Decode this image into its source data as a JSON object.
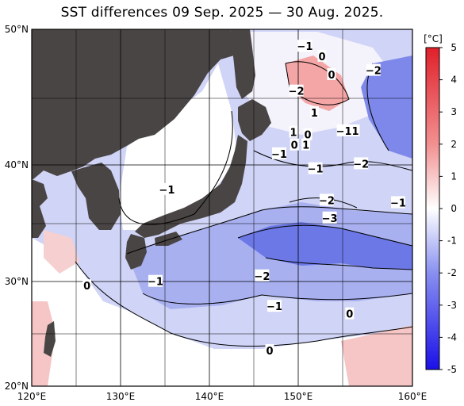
{
  "title": "SST differences 09 Sep. 2025 — 30 Aug. 2025.",
  "axes": {
    "lat_labels": [
      "50°N",
      "40°N",
      "30°N",
      "20°N"
    ],
    "lon_labels": [
      "120°E",
      "130°E",
      "140°E",
      "150°E",
      "160°E"
    ],
    "lat_range": [
      20,
      50
    ],
    "lon_range": [
      120,
      160
    ]
  },
  "colorbar": {
    "unit": "[°C]",
    "min": -5,
    "max": 5,
    "tick_labels": [
      "5",
      "4",
      "3",
      "2",
      "1",
      "0",
      "-1",
      "-2",
      "-3",
      "-4",
      "-5"
    ],
    "colors": {
      "warm_max": "#e0202a",
      "neutral": "#ffffff",
      "cool_max": "#1a10e8"
    }
  },
  "colors": {
    "land": "#4a4545",
    "grid": "#000000",
    "coast": "#000000"
  },
  "contour_labels": [
    {
      "text": "−1",
      "lon": 148.7,
      "lat": 48.8
    },
    {
      "text": "0",
      "lon": 150.5,
      "lat": 48.1
    },
    {
      "text": "0",
      "lon": 151.5,
      "lat": 46.8
    },
    {
      "text": "−2",
      "lon": 155.9,
      "lat": 47.1
    },
    {
      "text": "−2",
      "lon": 147.8,
      "lat": 45.6
    },
    {
      "text": "1",
      "lon": 149.7,
      "lat": 44.0
    },
    {
      "text": "−1",
      "lon": 152.8,
      "lat": 42.6
    },
    {
      "text": "1",
      "lon": 154.0,
      "lat": 42.6
    },
    {
      "text": "1",
      "lon": 147.5,
      "lat": 42.5
    },
    {
      "text": "0",
      "lon": 149.0,
      "lat": 42.3
    },
    {
      "text": "0",
      "lon": 147.6,
      "lat": 41.5
    },
    {
      "text": "1",
      "lon": 148.8,
      "lat": 41.5
    },
    {
      "text": "−1",
      "lon": 146.0,
      "lat": 40.8
    },
    {
      "text": "−2",
      "lon": 154.6,
      "lat": 40.0
    },
    {
      "text": "−1",
      "lon": 149.8,
      "lat": 39.6
    },
    {
      "text": "−1",
      "lon": 134.2,
      "lat": 37.9
    },
    {
      "text": "−2",
      "lon": 151.0,
      "lat": 37.0
    },
    {
      "text": "−1",
      "lon": 158.5,
      "lat": 36.8
    },
    {
      "text": "−3",
      "lon": 151.3,
      "lat": 35.5
    },
    {
      "text": "−2",
      "lon": 144.2,
      "lat": 30.4
    },
    {
      "text": "−1",
      "lon": 133.0,
      "lat": 29.9
    },
    {
      "text": "0",
      "lon": 125.8,
      "lat": 29.5
    },
    {
      "text": "−1",
      "lon": 145.5,
      "lat": 27.6
    },
    {
      "text": "0",
      "lon": 153.4,
      "lat": 26.9
    },
    {
      "text": "0",
      "lon": 145.0,
      "lat": 23.4
    }
  ]
}
